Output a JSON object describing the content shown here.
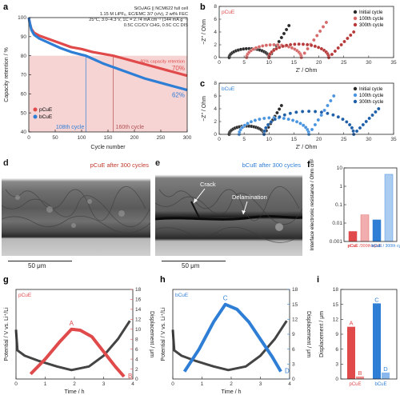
{
  "panels": {
    "a": {
      "label": "a",
      "info": [
        "SiOₓ/AG || NCM622 full cell",
        "1.15 M LiPF₆, EC/EMC 3/7 (v/v), 2 wt% FEC",
        "25°C, 3.0–4.3 V, 1C = 2.74 mA cm⁻² (144 mA g⁻¹)",
        "0.5C CC/CV CHG, 0.5C CC DIS"
      ],
      "threshold_label": "80% capacity retention",
      "annot_pcue": "70%",
      "annot_bcue": "62%",
      "cycle_b": "108th cycle",
      "cycle_p": "160th cycle",
      "legend": [
        "pCuE",
        "bCuE"
      ],
      "xlabel": "Cycle number",
      "ylabel": "Capacity retention / %"
    },
    "b": {
      "label": "b",
      "tag": "pCuE",
      "xlabel": "Z′ / Ohm",
      "ylabel": "−Z″ / Ohm",
      "legend": [
        "Initial cycle",
        "100th cycle",
        "300th cycle"
      ]
    },
    "c": {
      "label": "c",
      "tag": "bCuE",
      "xlabel": "Z′ / Ohm",
      "ylabel": "−Z″ / Ohm",
      "legend": [
        "Initial cycle",
        "100th cycle",
        "300th cycle"
      ]
    },
    "d": {
      "label": "d",
      "title": "pCuE after 300 cycles",
      "scale": "50 μm"
    },
    "e": {
      "label": "e",
      "title": "bCuE after 300 cycles",
      "crack": "Crack",
      "delam": "Delamination",
      "scale": "50 μm"
    },
    "f": {
      "label": "f",
      "ylabel": "Interface electronic resistance / Ohm cm²"
    },
    "g": {
      "label": "g",
      "tag": "pCuE",
      "ylabel_left": "Potential / V vs. Li⁺/Li",
      "ylabel_right": "Displacement / μm",
      "xlabel": "Time / h",
      "pA": "A",
      "pB": "B"
    },
    "h": {
      "label": "h",
      "tag": "bCuE",
      "ylabel_left": "Potential / V vs. Li⁺/Li",
      "ylabel_right": "Displacement / μm",
      "xlabel": "Time / h",
      "pC": "C",
      "pD": "D"
    },
    "i": {
      "label": "i",
      "ylabel": "Displacement / μm"
    }
  },
  "colors": {
    "pcue": "#e04a4a",
    "bcue": "#2f7ed6",
    "dark": "#444444",
    "pink": "#f7d4d4"
  },
  "chart_data": [
    {
      "panel": "a",
      "type": "line",
      "xlim": [
        0,
        300
      ],
      "ylim": [
        40,
        100
      ],
      "xticks": [
        0,
        50,
        100,
        150,
        200,
        250,
        300
      ],
      "yticks": [
        40,
        50,
        60,
        70,
        80,
        90,
        100
      ],
      "series": [
        {
          "name": "pCuE",
          "x": [
            0,
            2,
            5,
            10,
            20,
            40,
            60,
            80,
            100,
            120,
            140,
            160,
            180,
            200,
            220,
            240,
            260,
            280,
            300
          ],
          "y": [
            100,
            97,
            94,
            92,
            90.5,
            88.5,
            86.5,
            84.5,
            83.5,
            82,
            81,
            80,
            78.5,
            77,
            75.5,
            74,
            72.5,
            71,
            69.5
          ]
        },
        {
          "name": "bCuE",
          "x": [
            0,
            2,
            5,
            10,
            20,
            40,
            60,
            80,
            100,
            108,
            120,
            140,
            160,
            180,
            200,
            220,
            240,
            260,
            280,
            300
          ],
          "y": [
            100,
            97,
            93.5,
            91,
            89,
            86.5,
            84,
            82,
            80.5,
            80,
            78.5,
            76,
            74,
            72,
            70,
            68,
            66.5,
            65,
            63.5,
            62
          ]
        }
      ],
      "threshold": 80,
      "cycle_markers": [
        108,
        160
      ]
    },
    {
      "panel": "b",
      "type": "scatter",
      "xlim": [
        0,
        35
      ],
      "ylim": [
        0,
        8
      ],
      "xticks": [
        0,
        5,
        10,
        15,
        20,
        25,
        30,
        35
      ],
      "yticks": [
        0,
        2,
        4,
        6,
        8
      ],
      "series": [
        {
          "name": "Initial cycle"
        },
        {
          "name": "100th cycle"
        },
        {
          "name": "300th cycle"
        }
      ]
    },
    {
      "panel": "c",
      "type": "scatter",
      "xlim": [
        0,
        35
      ],
      "ylim": [
        0,
        8
      ],
      "xticks": [
        0,
        5,
        10,
        15,
        20,
        25,
        30,
        35
      ],
      "yticks": [
        0,
        2,
        4,
        6,
        8
      ],
      "series": [
        {
          "name": "Initial cycle"
        },
        {
          "name": "100th cycle"
        },
        {
          "name": "300th cycle"
        }
      ]
    },
    {
      "panel": "f",
      "type": "bar",
      "yscale": "log",
      "ylim": [
        0.001,
        10
      ],
      "yticks": [
        0.001,
        0.01,
        0.1,
        1,
        10
      ],
      "categories": [
        "pCuE",
        "pCuE /300th cycle",
        "bCuE",
        "bCuE / 300th cycle"
      ],
      "values": [
        0.0035,
        0.028,
        0.015,
        4.5
      ]
    },
    {
      "panel": "g",
      "type": "line",
      "xlim": [
        0,
        4
      ],
      "y_left": [
        0,
        1
      ],
      "y_right": [
        0,
        18
      ],
      "xticks": [
        0,
        1,
        2,
        3,
        4
      ],
      "yticks_right": [
        0,
        2,
        4,
        6,
        8,
        10,
        12,
        14,
        16,
        18
      ],
      "series": [
        {
          "name": "Potential",
          "x": [
            0,
            0.05,
            0.3,
            0.8,
            1.4,
            1.9,
            2.5,
            3.0,
            3.5,
            3.9
          ],
          "y": [
            0.55,
            0.32,
            0.26,
            0.2,
            0.14,
            0.1,
            0.14,
            0.26,
            0.45,
            0.65
          ]
        },
        {
          "name": "Displacement",
          "x": [
            0.5,
            1.0,
            1.5,
            1.9,
            2.2,
            2.6,
            3.0,
            3.4,
            3.7
          ],
          "y": [
            1,
            4,
            7.5,
            10,
            9.8,
            8.5,
            5.5,
            2.5,
            0.5
          ]
        }
      ]
    },
    {
      "panel": "h",
      "type": "line",
      "xlim": [
        0,
        4
      ],
      "y_left": [
        0,
        1
      ],
      "y_right": [
        0,
        18
      ],
      "xticks": [
        0,
        1,
        2,
        3,
        4
      ],
      "yticks_right": [
        0,
        3,
        6,
        9,
        12,
        15,
        18
      ],
      "series": [
        {
          "name": "Potential",
          "x": [
            0,
            0.05,
            0.3,
            0.8,
            1.4,
            1.9,
            2.5,
            3.0,
            3.5,
            3.9
          ],
          "y": [
            0.55,
            0.32,
            0.26,
            0.2,
            0.14,
            0.1,
            0.14,
            0.26,
            0.45,
            0.65
          ]
        },
        {
          "name": "Displacement",
          "x": [
            0.4,
            0.9,
            1.4,
            1.8,
            2.2,
            2.6,
            3.0,
            3.4,
            3.7
          ],
          "y": [
            1.5,
            6,
            11.5,
            15,
            14,
            11.5,
            8,
            4.5,
            1.5
          ]
        }
      ]
    },
    {
      "panel": "i",
      "type": "bar",
      "ylim": [
        0,
        18
      ],
      "yticks": [
        0,
        3,
        6,
        9,
        12,
        15,
        18
      ],
      "categories": [
        "pCuE",
        "bCuE"
      ],
      "bars": [
        {
          "label": "A",
          "value": 10.5
        },
        {
          "label": "B",
          "value": 0.5
        },
        {
          "label": "C",
          "value": 15.2
        },
        {
          "label": "D",
          "value": 1.3
        }
      ]
    }
  ]
}
